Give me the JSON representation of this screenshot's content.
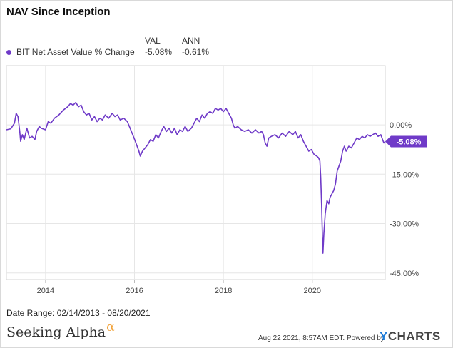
{
  "title": "NAV Since Inception",
  "legend": {
    "header_val": "VAL",
    "header_ann": "ANN",
    "series_name": "BIT Net Asset Value % Change",
    "val": "-5.08%",
    "ann": "-0.61%"
  },
  "footer": {
    "date_range": "Date Range: 02/14/2013 - 08/20/2021",
    "brand": "Seeking Alpha",
    "brand_mark": "α",
    "timestamp": "Aug 22 2021, 8:57AM EDT.",
    "powered_by": "Powered by",
    "ycharts_y": "Y",
    "ycharts_rest": "CHARTS"
  },
  "colors": {
    "series": "#6f3ac8",
    "grid": "#e6e6e6",
    "axis_text": "#444444"
  },
  "chart_data": {
    "type": "line",
    "x_start": "2013-02-14",
    "x_end": "2021-08-20",
    "xlim": [
      2013.12,
      2021.64
    ],
    "ylim": [
      -47,
      18
    ],
    "y_ticks": [
      0,
      -15,
      -30,
      -45
    ],
    "y_tick_labels": [
      "0.00%",
      "-15.00%",
      "-30.00%",
      "-45.00%"
    ],
    "x_ticks": [
      2014,
      2016,
      2018,
      2020
    ],
    "x_tick_labels": [
      "2014",
      "2016",
      "2018",
      "2020"
    ],
    "end_label": "-5.08%",
    "grid": true,
    "legend_position": "top-left",
    "series": [
      {
        "name": "BIT Net Asset Value % Change",
        "points": [
          [
            2013.12,
            -1.5
          ],
          [
            2013.22,
            -1.2
          ],
          [
            2013.3,
            0.5
          ],
          [
            2013.34,
            3.5
          ],
          [
            2013.38,
            2.5
          ],
          [
            2013.42,
            -2.0
          ],
          [
            2013.44,
            -5.0
          ],
          [
            2013.48,
            -3.0
          ],
          [
            2013.52,
            -4.5
          ],
          [
            2013.58,
            -1.0
          ],
          [
            2013.64,
            -4.0
          ],
          [
            2013.7,
            -3.5
          ],
          [
            2013.76,
            -4.5
          ],
          [
            2013.8,
            -2.0
          ],
          [
            2013.86,
            -0.5
          ],
          [
            2013.9,
            -1.0
          ],
          [
            2014.0,
            -1.5
          ],
          [
            2014.06,
            1.0
          ],
          [
            2014.12,
            0.5
          ],
          [
            2014.2,
            2.0
          ],
          [
            2014.3,
            3.0
          ],
          [
            2014.4,
            4.5
          ],
          [
            2014.5,
            5.5
          ],
          [
            2014.56,
            6.5
          ],
          [
            2014.62,
            6.0
          ],
          [
            2014.68,
            6.8
          ],
          [
            2014.74,
            5.5
          ],
          [
            2014.8,
            6.0
          ],
          [
            2014.86,
            4.0
          ],
          [
            2014.92,
            3.0
          ],
          [
            2014.98,
            3.5
          ],
          [
            2015.04,
            1.5
          ],
          [
            2015.1,
            2.5
          ],
          [
            2015.16,
            1.0
          ],
          [
            2015.22,
            2.0
          ],
          [
            2015.28,
            1.5
          ],
          [
            2015.34,
            3.0
          ],
          [
            2015.42,
            2.0
          ],
          [
            2015.5,
            3.5
          ],
          [
            2015.56,
            2.5
          ],
          [
            2015.62,
            3.0
          ],
          [
            2015.68,
            1.5
          ],
          [
            2015.76,
            2.0
          ],
          [
            2015.84,
            1.0
          ],
          [
            2015.9,
            -1.0
          ],
          [
            2015.96,
            -3.0
          ],
          [
            2016.02,
            -5.0
          ],
          [
            2016.06,
            -6.5
          ],
          [
            2016.1,
            -8.0
          ],
          [
            2016.13,
            -9.5
          ],
          [
            2016.18,
            -8.0
          ],
          [
            2016.24,
            -7.0
          ],
          [
            2016.3,
            -6.0
          ],
          [
            2016.36,
            -4.5
          ],
          [
            2016.42,
            -5.0
          ],
          [
            2016.48,
            -3.0
          ],
          [
            2016.54,
            -4.0
          ],
          [
            2016.6,
            -2.0
          ],
          [
            2016.66,
            -0.5
          ],
          [
            2016.72,
            -2.0
          ],
          [
            2016.78,
            -1.0
          ],
          [
            2016.84,
            -2.5
          ],
          [
            2016.9,
            -1.0
          ],
          [
            2016.96,
            -3.0
          ],
          [
            2017.02,
            -1.5
          ],
          [
            2017.08,
            -2.0
          ],
          [
            2017.14,
            -0.5
          ],
          [
            2017.2,
            -2.0
          ],
          [
            2017.28,
            -1.0
          ],
          [
            2017.34,
            0.5
          ],
          [
            2017.4,
            2.0
          ],
          [
            2017.46,
            1.0
          ],
          [
            2017.52,
            3.0
          ],
          [
            2017.58,
            2.0
          ],
          [
            2017.64,
            3.5
          ],
          [
            2017.7,
            4.0
          ],
          [
            2017.76,
            3.5
          ],
          [
            2017.82,
            5.0
          ],
          [
            2017.88,
            4.5
          ],
          [
            2017.94,
            5.0
          ],
          [
            2018.0,
            4.0
          ],
          [
            2018.06,
            5.0
          ],
          [
            2018.12,
            3.5
          ],
          [
            2018.18,
            2.0
          ],
          [
            2018.22,
            0.0
          ],
          [
            2018.26,
            -1.0
          ],
          [
            2018.32,
            -0.5
          ],
          [
            2018.4,
            -1.5
          ],
          [
            2018.48,
            -2.0
          ],
          [
            2018.56,
            -1.5
          ],
          [
            2018.64,
            -2.5
          ],
          [
            2018.72,
            -1.5
          ],
          [
            2018.8,
            -2.5
          ],
          [
            2018.86,
            -2.0
          ],
          [
            2018.9,
            -3.0
          ],
          [
            2018.94,
            -5.5
          ],
          [
            2018.98,
            -6.5
          ],
          [
            2019.02,
            -4.0
          ],
          [
            2019.08,
            -3.5
          ],
          [
            2019.16,
            -3.0
          ],
          [
            2019.24,
            -4.0
          ],
          [
            2019.32,
            -2.5
          ],
          [
            2019.4,
            -3.5
          ],
          [
            2019.48,
            -2.0
          ],
          [
            2019.56,
            -3.0
          ],
          [
            2019.62,
            -2.0
          ],
          [
            2019.68,
            -4.0
          ],
          [
            2019.74,
            -3.0
          ],
          [
            2019.8,
            -5.0
          ],
          [
            2019.86,
            -6.5
          ],
          [
            2019.92,
            -8.0
          ],
          [
            2019.98,
            -7.5
          ],
          [
            2020.04,
            -9.0
          ],
          [
            2020.1,
            -9.5
          ],
          [
            2020.14,
            -10.0
          ],
          [
            2020.17,
            -11.0
          ],
          [
            2020.19,
            -16.0
          ],
          [
            2020.21,
            -25.0
          ],
          [
            2020.23,
            -35.0
          ],
          [
            2020.24,
            -39.0
          ],
          [
            2020.26,
            -33.0
          ],
          [
            2020.29,
            -27.0
          ],
          [
            2020.33,
            -23.0
          ],
          [
            2020.37,
            -24.0
          ],
          [
            2020.4,
            -22.0
          ],
          [
            2020.44,
            -21.0
          ],
          [
            2020.48,
            -20.0
          ],
          [
            2020.52,
            -18.0
          ],
          [
            2020.56,
            -14.0
          ],
          [
            2020.6,
            -12.5
          ],
          [
            2020.64,
            -11.0
          ],
          [
            2020.68,
            -8.0
          ],
          [
            2020.72,
            -6.5
          ],
          [
            2020.76,
            -8.0
          ],
          [
            2020.82,
            -6.5
          ],
          [
            2020.88,
            -7.0
          ],
          [
            2020.94,
            -5.5
          ],
          [
            2021.0,
            -4.0
          ],
          [
            2021.06,
            -4.5
          ],
          [
            2021.12,
            -3.5
          ],
          [
            2021.18,
            -4.0
          ],
          [
            2021.24,
            -3.0
          ],
          [
            2021.3,
            -3.5
          ],
          [
            2021.36,
            -3.0
          ],
          [
            2021.42,
            -2.5
          ],
          [
            2021.48,
            -3.5
          ],
          [
            2021.54,
            -3.0
          ],
          [
            2021.58,
            -4.5
          ],
          [
            2021.61,
            -5.5
          ],
          [
            2021.64,
            -5.08
          ]
        ]
      }
    ]
  }
}
